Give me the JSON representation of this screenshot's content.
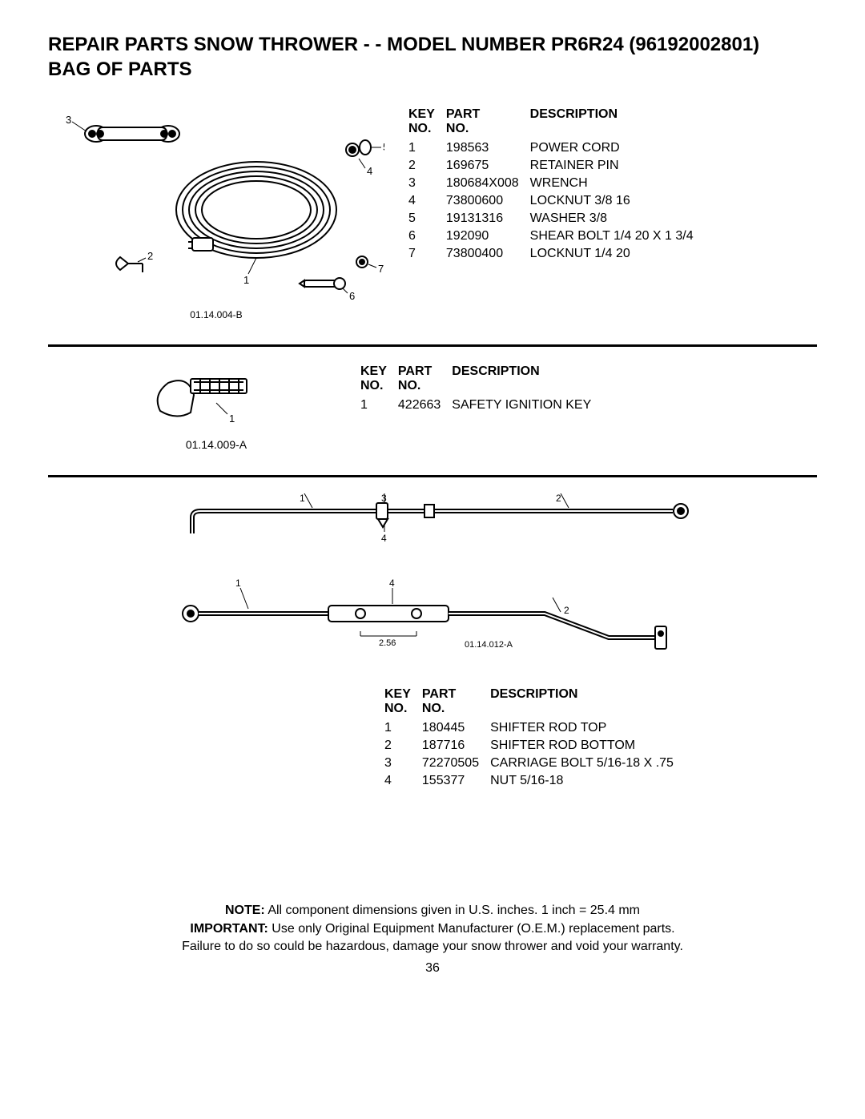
{
  "title_line1": "REPAIR PARTS  SNOW THROWER - - MODEL NUMBER  PR6R24 (96192002801)",
  "title_line2": "BAG OF PARTS",
  "columns": {
    "key": "KEY NO.",
    "part": "PART NO.",
    "desc": "DESCRIPTION"
  },
  "section1": {
    "diagram_label": "01.14.004-B",
    "rows": [
      {
        "key": "1",
        "part": "198563",
        "desc": "POWER CORD"
      },
      {
        "key": "2",
        "part": "169675",
        "desc": "RETAINER PIN"
      },
      {
        "key": "3",
        "part": "180684X008",
        "desc": "WRENCH"
      },
      {
        "key": "4",
        "part": "73800600",
        "desc": "LOCKNUT 3/8  16"
      },
      {
        "key": "5",
        "part": "19131316",
        "desc": "WASHER 3/8"
      },
      {
        "key": "6",
        "part": "192090",
        "desc": "SHEAR BOLT 1/4  20 X 1  3/4"
      },
      {
        "key": "7",
        "part": "73800400",
        "desc": "LOCKNUT 1/4  20"
      }
    ]
  },
  "section2": {
    "diagram_label": "01.14.009-A",
    "rows": [
      {
        "key": "1",
        "part": "422663",
        "desc": "SAFETY IGNITION KEY"
      }
    ]
  },
  "section3": {
    "diagram_label": "01.14.012-A",
    "dim_label": "2.56",
    "rows": [
      {
        "key": "1",
        "part": "180445",
        "desc": "SHIFTER ROD TOP"
      },
      {
        "key": "2",
        "part": "187716",
        "desc": "SHIFTER ROD BOTTOM"
      },
      {
        "key": "3",
        "part": "72270505",
        "desc": "CARRIAGE BOLT 5/16-18 X .75"
      },
      {
        "key": "4",
        "part": "155377",
        "desc": "NUT 5/16-18"
      }
    ]
  },
  "footer": {
    "note_bold": "NOTE:",
    "note_text": "  All component dimensions given in U.S. inches.    1 inch = 25.4 mm",
    "important_bold": "IMPORTANT:",
    "important_text": " Use only Original Equipment Manufacturer (O.E.M.) replacement parts.",
    "warn": "Failure to do so could be hazardous, damage your snow thrower and void your warranty."
  },
  "page_number": "36"
}
